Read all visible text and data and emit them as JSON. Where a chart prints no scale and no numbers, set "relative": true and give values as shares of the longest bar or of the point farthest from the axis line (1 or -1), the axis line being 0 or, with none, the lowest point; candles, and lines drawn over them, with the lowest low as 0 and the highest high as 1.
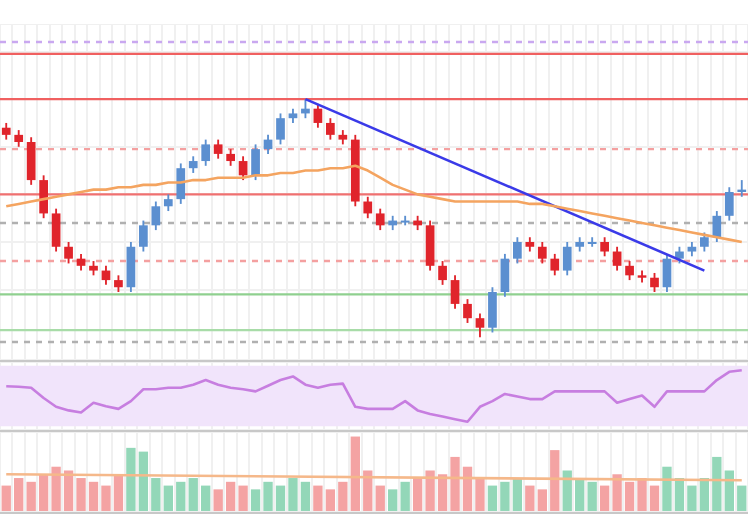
{
  "chart_data": [
    {
      "type": "candlestick",
      "relative": true,
      "grid": true,
      "marker": "none",
      "categories": [
        null,
        null,
        null,
        null,
        null,
        null,
        null,
        null,
        null,
        null,
        null,
        null,
        null,
        null,
        null,
        null,
        null,
        null,
        null,
        null,
        null,
        null,
        null,
        null,
        null,
        null,
        null,
        null,
        null,
        null,
        null,
        null,
        null,
        null,
        null,
        null,
        null,
        null,
        null,
        null,
        null,
        null,
        null,
        null,
        null,
        null,
        null,
        null,
        null,
        null,
        null,
        null,
        null,
        null,
        null,
        null,
        null,
        null,
        null,
        null
      ],
      "ohlc": [
        [
          0.88,
          0.9,
          0.83,
          0.85
        ],
        [
          0.85,
          0.87,
          0.8,
          0.82
        ],
        [
          0.82,
          0.84,
          0.64,
          0.66
        ],
        [
          0.66,
          0.68,
          0.5,
          0.52
        ],
        [
          0.52,
          0.54,
          0.36,
          0.38
        ],
        [
          0.38,
          0.4,
          0.31,
          0.33
        ],
        [
          0.33,
          0.35,
          0.28,
          0.3
        ],
        [
          0.3,
          0.32,
          0.26,
          0.28
        ],
        [
          0.28,
          0.3,
          0.22,
          0.24
        ],
        [
          0.24,
          0.26,
          0.19,
          0.21
        ],
        [
          0.21,
          0.4,
          0.19,
          0.38
        ],
        [
          0.38,
          0.49,
          0.36,
          0.47
        ],
        [
          0.47,
          0.57,
          0.45,
          0.55
        ],
        [
          0.55,
          0.6,
          0.53,
          0.58
        ],
        [
          0.58,
          0.73,
          0.56,
          0.71
        ],
        [
          0.71,
          0.76,
          0.69,
          0.74
        ],
        [
          0.74,
          0.83,
          0.72,
          0.81
        ],
        [
          0.81,
          0.83,
          0.75,
          0.77
        ],
        [
          0.77,
          0.79,
          0.72,
          0.74
        ],
        [
          0.74,
          0.76,
          0.66,
          0.68
        ],
        [
          0.68,
          0.81,
          0.66,
          0.79
        ],
        [
          0.79,
          0.85,
          0.77,
          0.83
        ],
        [
          0.83,
          0.94,
          0.81,
          0.92
        ],
        [
          0.92,
          0.96,
          0.9,
          0.94
        ],
        [
          0.94,
          1,
          0.92,
          0.96
        ],
        [
          0.96,
          0.98,
          0.88,
          0.9
        ],
        [
          0.9,
          0.92,
          0.83,
          0.85
        ],
        [
          0.85,
          0.87,
          0.81,
          0.83
        ],
        [
          0.83,
          0.85,
          0.55,
          0.57
        ],
        [
          0.57,
          0.59,
          0.5,
          0.52
        ],
        [
          0.52,
          0.54,
          0.45,
          0.47
        ],
        [
          0.47,
          0.51,
          0.45,
          0.49
        ],
        [
          0.49,
          0.51,
          0.47,
          0.49
        ],
        [
          0.49,
          0.51,
          0.45,
          0.47
        ],
        [
          0.47,
          0.49,
          0.28,
          0.3
        ],
        [
          0.3,
          0.32,
          0.22,
          0.24
        ],
        [
          0.24,
          0.26,
          0.12,
          0.14
        ],
        [
          0.14,
          0.16,
          0.06,
          0.08
        ],
        [
          0.08,
          0.1,
          0,
          0.04
        ],
        [
          0.04,
          0.21,
          0.02,
          0.19
        ],
        [
          0.19,
          0.35,
          0.17,
          0.33
        ],
        [
          0.33,
          0.42,
          0.31,
          0.4
        ],
        [
          0.4,
          0.42,
          0.36,
          0.38
        ],
        [
          0.38,
          0.4,
          0.31,
          0.33
        ],
        [
          0.33,
          0.35,
          0.26,
          0.28
        ],
        [
          0.28,
          0.4,
          0.26,
          0.38
        ],
        [
          0.38,
          0.42,
          0.36,
          0.4
        ],
        [
          0.4,
          0.42,
          0.38,
          0.4
        ],
        [
          0.4,
          0.42,
          0.34,
          0.36
        ],
        [
          0.36,
          0.38,
          0.28,
          0.3
        ],
        [
          0.3,
          0.32,
          0.24,
          0.26
        ],
        [
          0.26,
          0.28,
          0.23,
          0.25
        ],
        [
          0.25,
          0.27,
          0.19,
          0.21
        ],
        [
          0.21,
          0.35,
          0.19,
          0.33
        ],
        [
          0.33,
          0.38,
          0.31,
          0.36
        ],
        [
          0.36,
          0.4,
          0.34,
          0.38
        ],
        [
          0.38,
          0.44,
          0.36,
          0.42
        ],
        [
          0.42,
          0.53,
          0.4,
          0.51
        ],
        [
          0.51,
          0.63,
          0.49,
          0.61
        ],
        [
          0.61,
          0.66,
          0.59,
          0.62
        ]
      ],
      "colors": [
        "#e0242b",
        "#e0242b",
        "#e0242b",
        "#e0242b",
        "#e0242b",
        "#e0242b",
        "#e0242b",
        "#e0242b",
        "#e0242b",
        "#e0242b",
        "#5b8fd0",
        "#5b8fd0",
        "#5b8fd0",
        "#5b8fd0",
        "#5b8fd0",
        "#5b8fd0",
        "#5b8fd0",
        "#e0242b",
        "#e0242b",
        "#e0242b",
        "#5b8fd0",
        "#5b8fd0",
        "#5b8fd0",
        "#5b8fd0",
        "#5b8fd0",
        "#e0242b",
        "#e0242b",
        "#e0242b",
        "#e0242b",
        "#e0242b",
        "#e0242b",
        "#5b8fd0",
        "#5b8fd0",
        "#e0242b",
        "#e0242b",
        "#e0242b",
        "#e0242b",
        "#e0242b",
        "#e0242b",
        "#5b8fd0",
        "#5b8fd0",
        "#5b8fd0",
        "#e0242b",
        "#e0242b",
        "#e0242b",
        "#5b8fd0",
        "#5b8fd0",
        "#5b8fd0",
        "#e0242b",
        "#e0242b",
        "#e0242b",
        "#e0242b",
        "#e0242b",
        "#5b8fd0",
        "#5b8fd0",
        "#5b8fd0",
        "#5b8fd0",
        "#5b8fd0",
        "#5b8fd0",
        "#5b8fd0"
      ],
      "series": [
        {
          "type": "line",
          "color": "#f4a460",
          "values": [
            0.55,
            0.56,
            0.57,
            0.58,
            0.59,
            0.6,
            0.61,
            0.62,
            0.62,
            0.63,
            0.63,
            0.64,
            0.64,
            0.65,
            0.65,
            0.66,
            0.66,
            0.67,
            0.67,
            0.67,
            0.68,
            0.68,
            0.69,
            0.69,
            0.7,
            0.7,
            0.71,
            0.71,
            0.72,
            0.7,
            0.67,
            0.64,
            0.62,
            0.6,
            0.59,
            0.58,
            0.57,
            0.57,
            0.57,
            0.57,
            0.57,
            0.57,
            0.56,
            0.56,
            0.55,
            0.54,
            0.53,
            0.52,
            0.51,
            0.5,
            0.49,
            0.48,
            0.47,
            0.46,
            0.45,
            0.44,
            0.43,
            0.42,
            0.41,
            0.4
          ]
        },
        {
          "type": "line",
          "color": "#3a3ae8",
          "values": [
            null,
            null,
            null,
            null,
            null,
            null,
            null,
            null,
            null,
            null,
            null,
            null,
            null,
            null,
            null,
            null,
            null,
            null,
            null,
            null,
            null,
            null,
            null,
            null,
            1,
            null,
            null,
            null,
            null,
            null,
            null,
            null,
            null,
            null,
            null,
            null,
            null,
            null,
            null,
            null,
            null,
            null,
            null,
            null,
            null,
            null,
            null,
            null,
            null,
            null,
            null,
            null,
            null,
            null,
            null,
            null,
            0.28,
            null,
            null,
            null
          ]
        }
      ],
      "ref_lines": [
        {
          "axis": "y",
          "value": 1.24,
          "color": "#c9a8f0",
          "line_style": "dashed"
        },
        {
          "axis": "y",
          "value": 1.19,
          "color": "#f06060"
        },
        {
          "axis": "y",
          "value": 1.0,
          "color": "#f06060"
        },
        {
          "axis": "y",
          "value": 0.79,
          "color": "#f4a0a0",
          "line_style": "dashed"
        },
        {
          "axis": "y",
          "value": 0.6,
          "color": "#f07070"
        },
        {
          "axis": "y",
          "value": 0.48,
          "color": "#b0b0b0",
          "line_style": "dashed"
        },
        {
          "axis": "y",
          "value": 0.32,
          "color": "#f4a0a0",
          "line_style": "dashed"
        },
        {
          "axis": "y",
          "value": 0.18,
          "color": "#8fd08f"
        },
        {
          "axis": "y",
          "value": 0.03,
          "color": "#a8dca8"
        },
        {
          "axis": "y",
          "value": -0.02,
          "color": "#b0b0b0",
          "line_style": "dashed"
        }
      ]
    },
    {
      "type": "line",
      "relative": true,
      "grid": true,
      "marker": "none",
      "categories": [
        null,
        null,
        null,
        null,
        null,
        null,
        null,
        null,
        null,
        null,
        null,
        null,
        null,
        null,
        null,
        null,
        null,
        null,
        null,
        null,
        null,
        null,
        null,
        null,
        null,
        null,
        null,
        null,
        null,
        null,
        null,
        null,
        null,
        null,
        null,
        null,
        null,
        null,
        null,
        null,
        null,
        null,
        null,
        null,
        null,
        null,
        null,
        null,
        null,
        null,
        null,
        null,
        null,
        null,
        null,
        null,
        null,
        null,
        null,
        null
      ],
      "series": [
        {
          "color": "#c77ee0",
          "values": [
            0.69,
            0.68,
            0.66,
            0.46,
            0.29,
            0.22,
            0.18,
            0.37,
            0.3,
            0.25,
            0.4,
            0.63,
            0.63,
            0.66,
            0.66,
            0.72,
            0.81,
            0.72,
            0.66,
            0.63,
            0.59,
            0.7,
            0.81,
            0.88,
            0.72,
            0.66,
            0.72,
            0.74,
            0.29,
            0.25,
            0.25,
            0.25,
            0.4,
            0.22,
            0.15,
            0.1,
            0.05,
            0,
            0.29,
            0.4,
            0.54,
            0.49,
            0.44,
            0.44,
            0.59,
            0.59,
            0.59,
            0.59,
            0.59,
            0.37,
            0.44,
            0.51,
            0.29,
            0.59,
            0.59,
            0.59,
            0.59,
            0.81,
            0.97,
            1
          ]
        }
      ],
      "bands": [
        {
          "axis": "y",
          "from": -0.09,
          "to": 1.09,
          "color": "#f1e4fb"
        }
      ]
    },
    {
      "type": "bar",
      "relative": true,
      "grid": true,
      "marker": "none",
      "categories": [
        null,
        null,
        null,
        null,
        null,
        null,
        null,
        null,
        null,
        null,
        null,
        null,
        null,
        null,
        null,
        null,
        null,
        null,
        null,
        null,
        null,
        null,
        null,
        null,
        null,
        null,
        null,
        null,
        null,
        null,
        null,
        null,
        null,
        null,
        null,
        null,
        null,
        null,
        null,
        null,
        null,
        null,
        null,
        null,
        null,
        null,
        null,
        null,
        null,
        null,
        null,
        null,
        null,
        null,
        null,
        null,
        null,
        null,
        null,
        null
      ],
      "values": [
        0.35,
        0.45,
        0.4,
        0.5,
        0.6,
        0.55,
        0.45,
        0.4,
        0.35,
        0.5,
        0.85,
        0.8,
        0.45,
        0.35,
        0.4,
        0.45,
        0.35,
        0.3,
        0.4,
        0.35,
        0.3,
        0.4,
        0.35,
        0.45,
        0.4,
        0.35,
        0.3,
        0.4,
        1,
        0.55,
        0.35,
        0.3,
        0.4,
        0.45,
        0.55,
        0.5,
        0.73,
        0.6,
        0.45,
        0.35,
        0.4,
        0.45,
        0.35,
        0.3,
        0.82,
        0.55,
        0.45,
        0.4,
        0.35,
        0.5,
        0.4,
        0.45,
        0.35,
        0.6,
        0.45,
        0.35,
        0.45,
        0.73,
        0.55,
        0.35
      ],
      "colors": [
        "#f4a3a3",
        "#f4a3a3",
        "#f4a3a3",
        "#f4a3a3",
        "#f4a3a3",
        "#f4a3a3",
        "#f4a3a3",
        "#f4a3a3",
        "#f4a3a3",
        "#f4a3a3",
        "#93d7b8",
        "#93d7b8",
        "#93d7b8",
        "#93d7b8",
        "#93d7b8",
        "#93d7b8",
        "#93d7b8",
        "#f4a3a3",
        "#f4a3a3",
        "#f4a3a3",
        "#93d7b8",
        "#93d7b8",
        "#93d7b8",
        "#93d7b8",
        "#93d7b8",
        "#f4a3a3",
        "#f4a3a3",
        "#f4a3a3",
        "#f4a3a3",
        "#f4a3a3",
        "#f4a3a3",
        "#93d7b8",
        "#93d7b8",
        "#f4a3a3",
        "#f4a3a3",
        "#f4a3a3",
        "#f4a3a3",
        "#f4a3a3",
        "#f4a3a3",
        "#93d7b8",
        "#93d7b8",
        "#93d7b8",
        "#f4a3a3",
        "#f4a3a3",
        "#f4a3a3",
        "#93d7b8",
        "#93d7b8",
        "#93d7b8",
        "#f4a3a3",
        "#f4a3a3",
        "#f4a3a3",
        "#f4a3a3",
        "#f4a3a3",
        "#93d7b8",
        "#93d7b8",
        "#93d7b8",
        "#93d7b8",
        "#93d7b8",
        "#93d7b8",
        "#93d7b8"
      ],
      "series": [
        {
          "type": "line",
          "color": "#f5b88a",
          "values": [
            0.5,
            null,
            null,
            null,
            null,
            null,
            null,
            null,
            null,
            null,
            null,
            null,
            null,
            null,
            null,
            null,
            null,
            null,
            null,
            null,
            null,
            null,
            null,
            null,
            null,
            null,
            null,
            null,
            null,
            null,
            null,
            null,
            null,
            null,
            null,
            null,
            null,
            null,
            null,
            null,
            null,
            null,
            null,
            null,
            null,
            null,
            null,
            null,
            null,
            null,
            null,
            null,
            null,
            null,
            null,
            null,
            null,
            null,
            null,
            0.42
          ]
        }
      ]
    }
  ]
}
